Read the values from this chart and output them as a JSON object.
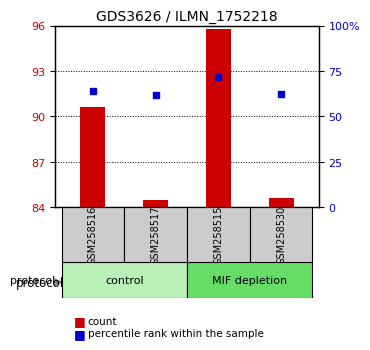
{
  "title": "GDS3626 / ILMN_1752218",
  "samples": [
    "GSM258516",
    "GSM258517",
    "GSM258515",
    "GSM258530"
  ],
  "bar_values": [
    90.6,
    84.5,
    95.8,
    84.6
  ],
  "bar_baseline": 84,
  "blue_values": [
    91.7,
    91.4,
    92.6,
    91.5
  ],
  "left_ylim": [
    84,
    96
  ],
  "left_yticks": [
    84,
    87,
    90,
    93,
    96
  ],
  "right_ylim": [
    0,
    100
  ],
  "right_yticks": [
    0,
    25,
    50,
    75,
    100
  ],
  "right_yticklabels": [
    "0",
    "25",
    "50",
    "75",
    "100%"
  ],
  "bar_color": "#cc0000",
  "blue_color": "#0000cc",
  "group_labels": [
    "control",
    "MIF depletion"
  ],
  "group_ranges": [
    [
      0,
      1
    ],
    [
      2,
      3
    ]
  ],
  "group_colors": [
    "#aaffaa",
    "#55dd55"
  ],
  "sample_box_color": "#cccccc",
  "legend_count_label": "count",
  "legend_pct_label": "percentile rank within the sample",
  "protocol_label": "protocol",
  "dotted_grid_values": [
    87,
    90,
    93
  ],
  "bar_width": 0.4
}
